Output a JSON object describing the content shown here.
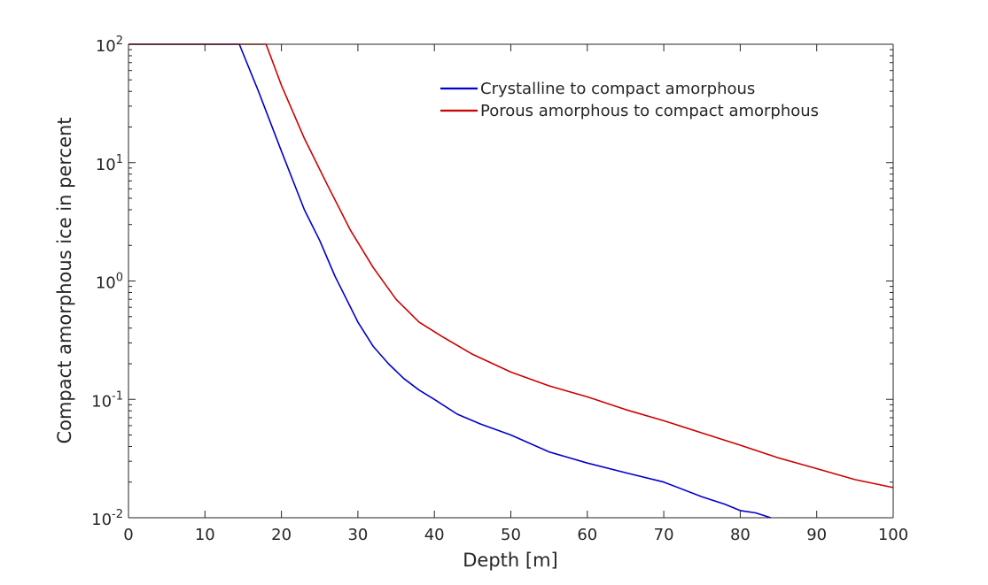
{
  "chart_data": {
    "type": "line",
    "xlabel": "Depth [m]",
    "ylabel": "Compact amorphous ice in percent",
    "xlim": [
      0,
      100
    ],
    "ylim": [
      0.01,
      100
    ],
    "yscale": "log",
    "grid": false,
    "legend_placement": "top-right",
    "x_ticks": [
      "0",
      "10",
      "20",
      "30",
      "40",
      "50",
      "60",
      "70",
      "80",
      "90",
      "100"
    ],
    "y_ticks": [
      {
        "value": 100,
        "base": "10",
        "exp": "2"
      },
      {
        "value": 10,
        "base": "10",
        "exp": "1"
      },
      {
        "value": 1,
        "base": "10",
        "exp": "0"
      },
      {
        "value": 0.1,
        "base": "10",
        "exp": "-1"
      },
      {
        "value": 0.01,
        "base": "10",
        "exp": "-2"
      }
    ],
    "series": [
      {
        "name": "Crystalline to compact amorphous",
        "color": "#0000cc",
        "x": [
          0,
          14.5,
          17,
          20,
          23,
          25,
          27,
          30,
          32,
          34,
          36,
          38,
          40,
          43,
          46,
          50,
          55,
          60,
          65,
          70,
          75,
          78,
          80,
          82,
          84
        ],
        "y": [
          100,
          100,
          40,
          12.5,
          4,
          2.2,
          1.1,
          0.45,
          0.28,
          0.2,
          0.15,
          0.12,
          0.1,
          0.075,
          0.062,
          0.05,
          0.036,
          0.029,
          0.024,
          0.02,
          0.015,
          0.013,
          0.0115,
          0.011,
          0.01
        ]
      },
      {
        "name": "Porous amorphous to compact amorphous",
        "color": "#cc0000",
        "x": [
          0,
          18,
          20,
          23,
          26,
          29,
          32,
          35,
          38,
          41,
          45,
          50,
          55,
          60,
          65,
          70,
          75,
          80,
          85,
          90,
          95,
          100
        ],
        "y": [
          100,
          100,
          45,
          16,
          6.5,
          2.7,
          1.3,
          0.7,
          0.45,
          0.34,
          0.24,
          0.17,
          0.13,
          0.105,
          0.082,
          0.066,
          0.052,
          0.041,
          0.032,
          0.026,
          0.021,
          0.018
        ]
      }
    ]
  }
}
